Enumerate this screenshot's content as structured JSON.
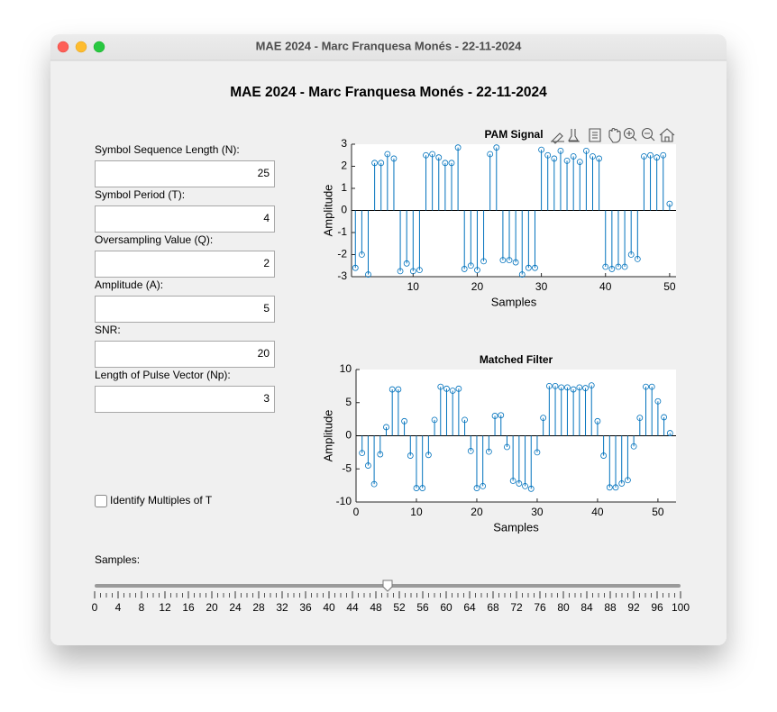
{
  "window": {
    "title": "MAE 2024 - Marc Franquesa Monés - 22-11-2024"
  },
  "header": {
    "title": "MAE 2024 - Marc Franquesa Monés - 22-11-2024"
  },
  "fields": [
    {
      "label": "Symbol Sequence Length (N):",
      "value": 25
    },
    {
      "label": "Symbol Period (T):",
      "value": 4
    },
    {
      "label": "Oversampling Value (Q):",
      "value": 2
    },
    {
      "label": "Amplitude (A):",
      "value": 5
    },
    {
      "label": "SNR:",
      "value": 20
    },
    {
      "label": "Length of Pulse Vector (Np):",
      "value": 3
    }
  ],
  "checkbox": {
    "label": "Identify Multiples of T",
    "checked": false
  },
  "slider": {
    "label": "Samples:",
    "lim": [
      0,
      100
    ],
    "value": 50,
    "minor_step": 1,
    "ticks": [
      0,
      4,
      8,
      12,
      16,
      20,
      24,
      28,
      32,
      36,
      40,
      44,
      48,
      52,
      56,
      60,
      64,
      68,
      72,
      76,
      80,
      84,
      88,
      92,
      96,
      100
    ]
  },
  "chart_data": [
    {
      "type": "stem",
      "title": "PAM Signal",
      "xlabel": "Samples",
      "ylabel": "Amplitude",
      "color": "#0072bd",
      "x": [
        1,
        2,
        3,
        4,
        5,
        6,
        7,
        8,
        9,
        10,
        11,
        12,
        13,
        14,
        15,
        16,
        17,
        18,
        19,
        20,
        21,
        22,
        23,
        24,
        25,
        26,
        27,
        28,
        29,
        30,
        31,
        32,
        33,
        34,
        35,
        36,
        37,
        38,
        39,
        40,
        41,
        42,
        43,
        44,
        45,
        46,
        47,
        48,
        49,
        50
      ],
      "values": [
        -2.6,
        -2.0,
        -2.9,
        2.15,
        2.15,
        2.55,
        2.35,
        -2.75,
        -2.4,
        -2.75,
        -2.7,
        2.5,
        2.55,
        2.4,
        2.15,
        2.15,
        2.85,
        -2.65,
        -2.5,
        -2.7,
        -2.3,
        2.55,
        2.85,
        -2.25,
        -2.25,
        -2.35,
        -2.9,
        -2.6,
        -2.6,
        2.75,
        2.5,
        2.35,
        2.7,
        2.25,
        2.45,
        2.2,
        2.7,
        2.45,
        2.35,
        -2.55,
        -2.65,
        -2.55,
        -2.55,
        -2.0,
        -2.2,
        2.45,
        2.5,
        2.4,
        2.5,
        0.3
      ],
      "xlim": [
        0.4,
        51
      ],
      "ylim": [
        -3,
        3
      ],
      "xticks": [
        10,
        20,
        30,
        40,
        50
      ],
      "yticks": [
        -3,
        -2,
        -1,
        0,
        1,
        2,
        3
      ]
    },
    {
      "type": "stem",
      "title": "Matched Filter",
      "xlabel": "Samples",
      "ylabel": "Amplitude",
      "color": "#0072bd",
      "x": [
        1,
        2,
        3,
        4,
        5,
        6,
        7,
        8,
        9,
        10,
        11,
        12,
        13,
        14,
        15,
        16,
        17,
        18,
        19,
        20,
        21,
        22,
        23,
        24,
        25,
        26,
        27,
        28,
        29,
        30,
        31,
        32,
        33,
        34,
        35,
        36,
        37,
        38,
        39,
        40,
        41,
        42,
        43,
        44,
        45,
        46,
        47,
        48,
        49,
        50,
        51,
        52
      ],
      "values": [
        -2.6,
        -4.5,
        -7.3,
        -2.8,
        1.3,
        7.0,
        7.0,
        2.2,
        -3.0,
        -7.9,
        -7.9,
        -2.9,
        2.4,
        7.4,
        7.1,
        6.8,
        7.1,
        2.4,
        -2.3,
        -7.9,
        -7.6,
        -2.4,
        3.0,
        3.1,
        -1.7,
        -6.8,
        -7.2,
        -7.6,
        -8.0,
        -2.5,
        2.7,
        7.5,
        7.5,
        7.3,
        7.3,
        7.0,
        7.3,
        7.2,
        7.6,
        2.2,
        -3.0,
        -7.8,
        -7.8,
        -7.2,
        -6.7,
        -1.6,
        2.7,
        7.4,
        7.4,
        5.2,
        2.8,
        0.4
      ],
      "xlim": [
        0,
        53
      ],
      "ylim": [
        -10,
        10
      ],
      "xticks": [
        0,
        10,
        20,
        30,
        40,
        50
      ],
      "yticks": [
        -10,
        -5,
        0,
        5,
        10
      ]
    }
  ]
}
